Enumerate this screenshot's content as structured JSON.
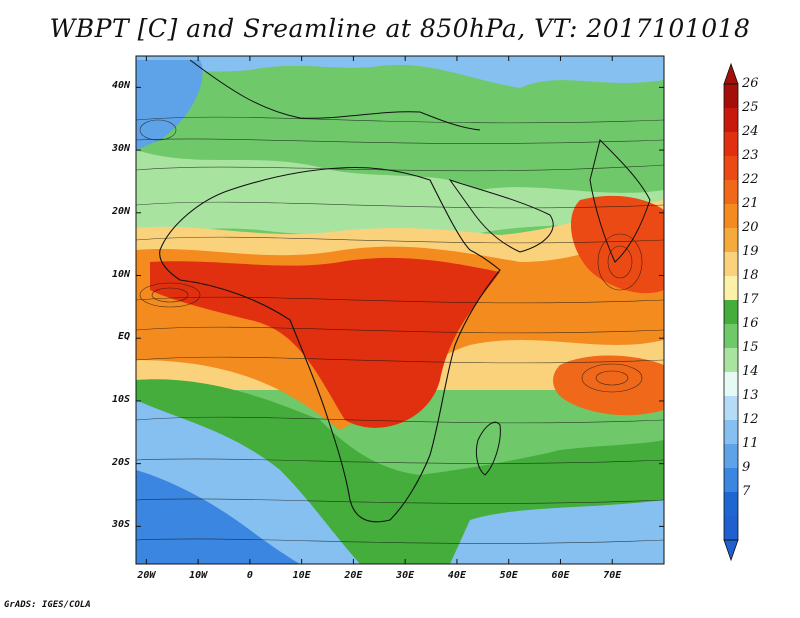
{
  "title": "WBPT [C] and Sreamline at 850hPa, VT: 2017101018",
  "credit": "GrADS: IGES/COLA",
  "map": {
    "lat_ticks": [
      "40N",
      "30N",
      "20N",
      "10N",
      "EQ",
      "10S",
      "20S",
      "30S"
    ],
    "lon_ticks": [
      "20W",
      "10W",
      "0",
      "10E",
      "20E",
      "30E",
      "40E",
      "50E",
      "60E",
      "70E"
    ],
    "lon_range": [
      -22,
      80
    ],
    "lat_range": [
      -36,
      45
    ]
  },
  "colorbar": {
    "labels": [
      "26",
      "25",
      "24",
      "23",
      "22",
      "21",
      "20",
      "19",
      "18",
      "17",
      "16",
      "15",
      "14",
      "13",
      "12",
      "11",
      "9",
      "7"
    ],
    "colors": [
      "#a50f0a",
      "#c8190e",
      "#e0300f",
      "#ec4a14",
      "#f0681a",
      "#f38b1f",
      "#f6aa3c",
      "#fbd27c",
      "#fdf0a8",
      "#44ad3c",
      "#6fc86a",
      "#a9e3a0",
      "#e6faf5",
      "#b4dcf6",
      "#86c0f0",
      "#5ea2e8",
      "#3b86e0",
      "#1e66d2",
      "#1f5fd0"
    ]
  }
}
